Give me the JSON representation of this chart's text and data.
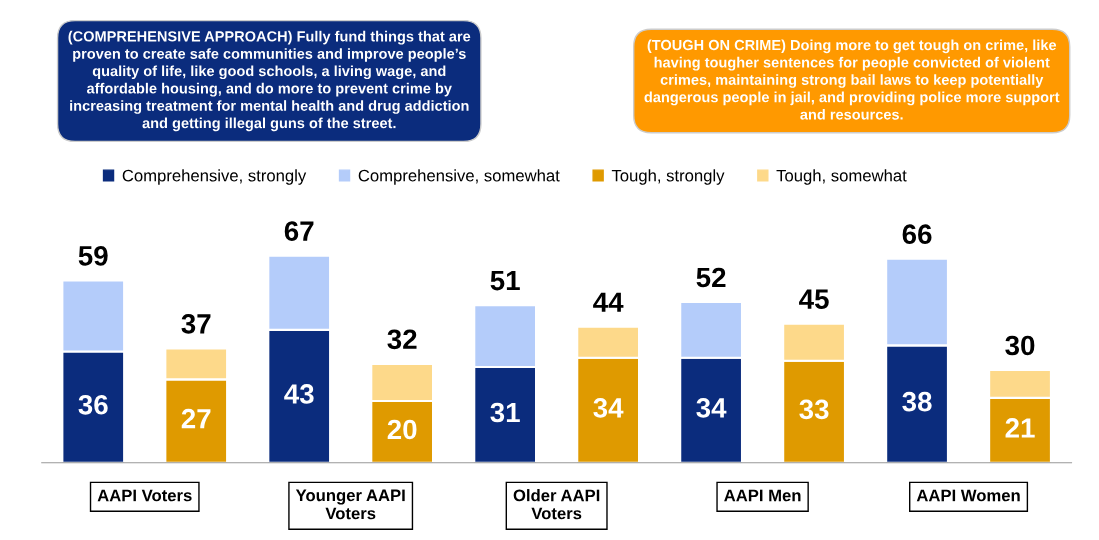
{
  "chart_data": {
    "type": "bar",
    "stacked": true,
    "categories": [
      null,
      null,
      null,
      null,
      null,
      null,
      null,
      null,
      null,
      null
    ],
    "series": [
      {
        "name": "Comprehensive, strongly",
        "color": "#0b2c7d",
        "values": [
          36,
          null,
          43,
          null,
          31,
          null,
          34,
          null,
          38,
          null
        ],
        "value_labels": [
          "36",
          null,
          "43",
          null,
          "31",
          null,
          "34",
          null,
          "38",
          null
        ]
      },
      {
        "name": "Comprehensive, somewhat",
        "color": "#b4ccfa",
        "values": [
          23,
          null,
          24,
          null,
          20,
          null,
          18,
          null,
          28,
          null
        ]
      },
      {
        "name": "Tough, strongly",
        "color": "#df9a00",
        "values": [
          null,
          27,
          null,
          20,
          null,
          34,
          null,
          33,
          null,
          21
        ],
        "value_labels": [
          null,
          "27",
          null,
          "20",
          null,
          "34",
          null,
          "33",
          null,
          "21"
        ]
      },
      {
        "name": "Tough, somewhat",
        "color": "#fdd98a",
        "values": [
          null,
          10,
          null,
          12,
          null,
          10,
          null,
          12,
          null,
          9
        ]
      }
    ],
    "totals": [
      "59",
      "37",
      "67",
      "32",
      "51",
      "44",
      "52",
      "45",
      "66",
      "30"
    ],
    "tick_labels": false,
    "legend": "top",
    "grid": false,
    "annotations": [
      "(COMPREHENSIVE APPROACH) Fully fund things that are\nproven to create safe communities and improve people’s\nquality of life, like good schools, a living wage, and\naffordable housing, and do more to prevent crime by\nincreasing treatment for mental health and drug addiction\nand getting illegal guns of the street.",
      "(TOUGH ON CRIME) Doing more to get tough on crime, like\nhaving tougher sentences for people convicted of violent\ncrimes, maintaining strong bail laws to keep potentially\ndangerous people in jail, and providing police more support\nand resources.",
      "AAPI Voters",
      "Younger AAPI\nVoters",
      "Older AAPI\nVoters",
      "AAPI Men",
      "AAPI Women"
    ]
  }
}
